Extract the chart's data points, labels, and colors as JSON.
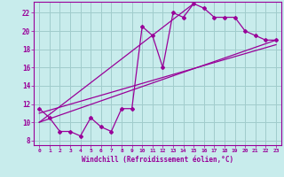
{
  "background_color": "#c8ecec",
  "line_color": "#990099",
  "grid_color": "#a0cccc",
  "xlabel": "Windchill (Refroidissement éolien,°C)",
  "ylabel_ticks": [
    8,
    10,
    12,
    14,
    16,
    18,
    20,
    22
  ],
  "xlim": [
    -0.5,
    23.5
  ],
  "ylim": [
    7.5,
    23.2
  ],
  "xticks": [
    0,
    1,
    2,
    3,
    4,
    5,
    6,
    7,
    8,
    9,
    10,
    11,
    12,
    13,
    14,
    15,
    16,
    17,
    18,
    19,
    20,
    21,
    22,
    23
  ],
  "scatter_x": [
    0,
    1,
    2,
    3,
    4,
    5,
    6,
    7,
    8,
    9,
    10,
    11,
    12,
    13,
    14,
    15,
    16,
    17,
    18,
    19,
    20,
    21,
    22,
    23
  ],
  "scatter_y": [
    11.5,
    10.5,
    9.0,
    9.0,
    8.5,
    10.5,
    9.5,
    9.0,
    11.5,
    11.5,
    20.5,
    19.5,
    16.0,
    22.0,
    21.5,
    23.0,
    22.5,
    21.5,
    21.5,
    21.5,
    20.0,
    19.5,
    19.0,
    19.0
  ],
  "line1_x": [
    0,
    23
  ],
  "line1_y": [
    10.0,
    19.0
  ],
  "line2_x": [
    0,
    15
  ],
  "line2_y": [
    10.0,
    23.0
  ],
  "line3_x": [
    0,
    23
  ],
  "line3_y": [
    11.0,
    18.5
  ]
}
